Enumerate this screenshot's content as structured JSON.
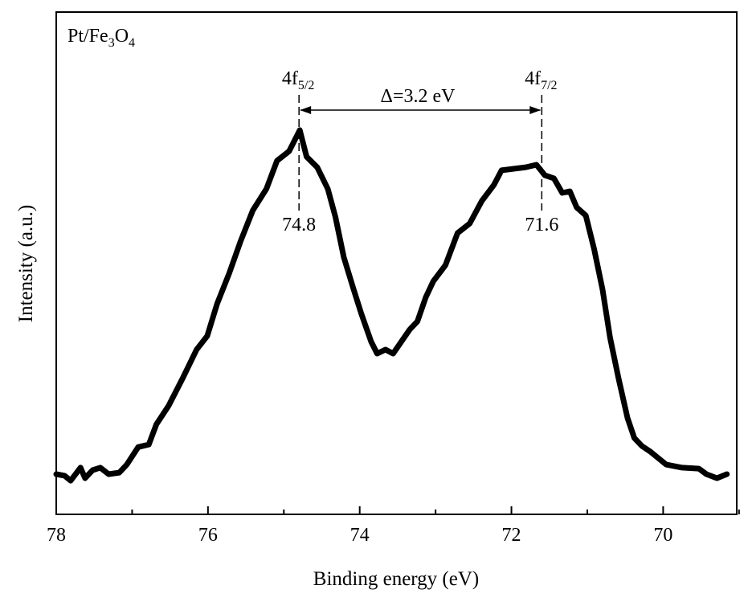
{
  "chart_data": {
    "type": "line",
    "title": "",
    "xlabel": "Binding energy (eV)",
    "ylabel": "Intensity (a.u.)",
    "xlim": [
      78,
      69.03
    ],
    "ylim": [
      0,
      100
    ],
    "x_reversed": true,
    "y_ticks_shown": false,
    "grid": false,
    "x_ticks": [
      78,
      76,
      74,
      72,
      70
    ],
    "x_tick_labels": [
      "78",
      "76",
      "74",
      "72",
      "70"
    ],
    "x_minor_ticks": [
      77,
      75,
      73,
      71,
      69
    ],
    "line_color": "#000000",
    "sample_label": {
      "main": "Pt/Fe",
      "sub1": "3",
      "mid": "O",
      "sub2": "4"
    },
    "peaks": [
      {
        "label_main": "4f",
        "label_sub": "5/2",
        "x": 74.8,
        "value_label": "74.8"
      },
      {
        "label_main": "4f",
        "label_sub": "7/2",
        "x": 71.6,
        "value_label": "71.6"
      }
    ],
    "splitting_label": "Δ=3.2 eV",
    "series": [
      {
        "x": [
          78.0,
          77.89,
          77.81,
          77.68,
          77.62,
          77.52,
          77.42,
          77.31,
          77.17,
          77.07,
          76.92,
          76.78,
          76.68,
          76.52,
          76.33,
          76.15,
          76.01,
          75.88,
          75.72,
          75.57,
          75.41,
          75.23,
          75.09,
          74.93,
          74.79,
          74.7,
          74.56,
          74.42,
          74.32,
          74.21,
          74.08,
          73.98,
          73.85,
          73.77,
          73.66,
          73.56,
          73.45,
          73.34,
          73.24,
          73.13,
          73.03,
          72.87,
          72.71,
          72.55,
          72.39,
          72.23,
          72.13,
          71.97,
          71.81,
          71.67,
          71.56,
          71.44,
          71.33,
          71.23,
          71.14,
          71.02,
          70.91,
          70.8,
          70.7,
          70.59,
          70.47,
          70.38,
          70.28,
          70.17,
          69.96,
          69.75,
          69.53,
          69.43,
          69.29,
          69.16
        ],
        "y": [
          8.0,
          7.7,
          6.7,
          9.3,
          7.2,
          8.8,
          9.3,
          8.0,
          8.3,
          9.9,
          13.4,
          13.9,
          17.9,
          21.6,
          27.2,
          32.8,
          35.5,
          41.9,
          48.0,
          54.4,
          60.5,
          64.8,
          70.4,
          72.3,
          76.5,
          71.2,
          69.1,
          64.8,
          59.2,
          51.2,
          44.8,
          40.0,
          34.4,
          32.0,
          32.8,
          32.0,
          34.4,
          36.8,
          38.4,
          43.2,
          46.4,
          49.6,
          56.0,
          57.9,
          62.4,
          65.6,
          68.5,
          68.8,
          69.1,
          69.6,
          67.5,
          66.9,
          64.0,
          64.3,
          61.1,
          59.5,
          52.8,
          44.8,
          35.2,
          27.2,
          19.2,
          15.2,
          13.6,
          12.5,
          9.9,
          9.3,
          9.1,
          8.0,
          7.2,
          8.0
        ]
      }
    ]
  }
}
